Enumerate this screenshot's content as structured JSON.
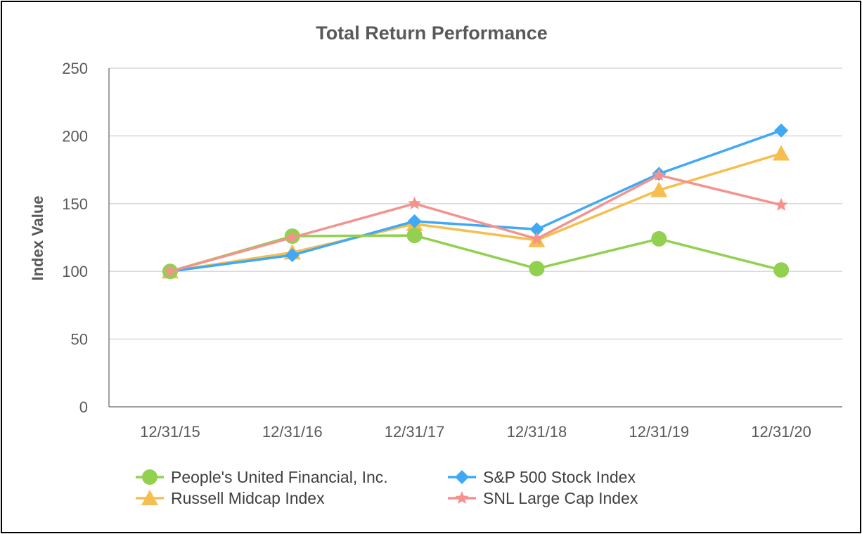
{
  "chart_data": {
    "type": "line",
    "title": "Total Return Performance",
    "xlabel": "",
    "ylabel": "Index Value",
    "categories": [
      "12/31/15",
      "12/31/16",
      "12/31/17",
      "12/31/18",
      "12/31/19",
      "12/31/20"
    ],
    "ylim": [
      0,
      250
    ],
    "yticks": [
      0,
      50,
      100,
      150,
      200,
      250
    ],
    "grid": true,
    "legend_position": "bottom",
    "series": [
      {
        "name": "People's United Financial, Inc.",
        "values": [
          100,
          126,
          126.5,
          102,
          124,
          101
        ],
        "color": "#92d050",
        "marker": "circle"
      },
      {
        "name": "S&P 500 Stock Index",
        "values": [
          100,
          112,
          137,
          131,
          172,
          204
        ],
        "color": "#3fa9f5",
        "marker": "diamond"
      },
      {
        "name": "Russell Midcap Index",
        "values": [
          100,
          114,
          135,
          123,
          160,
          187
        ],
        "color": "#f5be4f",
        "marker": "triangle"
      },
      {
        "name": "SNL Large Cap Index",
        "values": [
          100,
          125,
          150,
          124,
          171,
          149
        ],
        "color": "#f4938e",
        "marker": "star"
      }
    ],
    "series_draw_order": [
      2,
      1,
      0,
      3
    ]
  }
}
